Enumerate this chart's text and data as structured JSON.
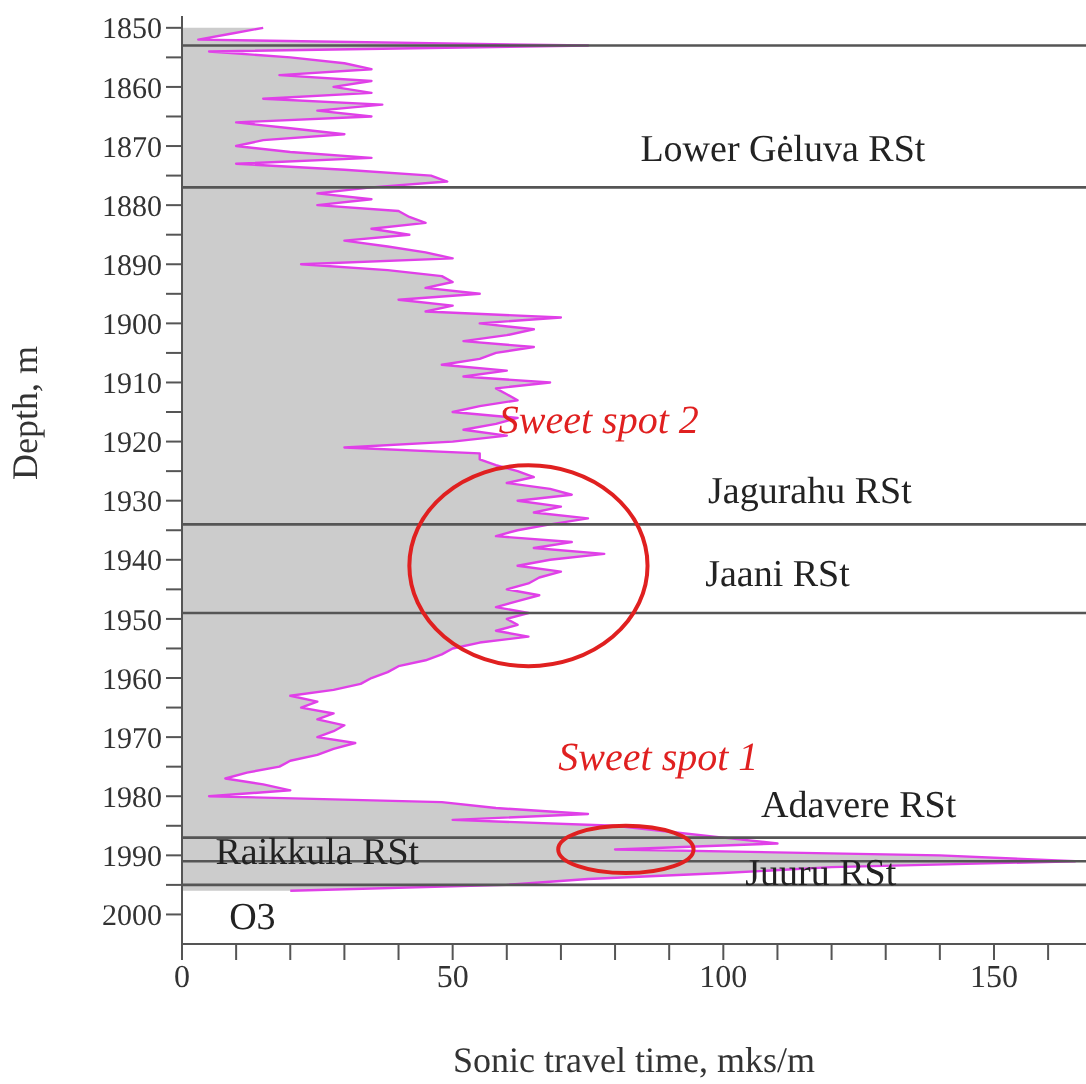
{
  "chart_data": {
    "type": "area",
    "orientation": "horizontal",
    "xlabel": "Sonic travel time, mks/m",
    "ylabel": "Depth, m",
    "xlim": [
      0,
      167
    ],
    "xticks": [
      0,
      {
        "value": 10,
        "label": null
      },
      {
        "value": 20,
        "label": null
      },
      {
        "value": 30,
        "label": null
      },
      {
        "value": 40,
        "label": null
      },
      50,
      {
        "value": 60,
        "label": null
      },
      {
        "value": 70,
        "label": null
      },
      {
        "value": 80,
        "label": null
      },
      {
        "value": 90,
        "label": null
      },
      100,
      {
        "value": 110,
        "label": null
      },
      {
        "value": 120,
        "label": null
      },
      {
        "value": 130,
        "label": null
      },
      {
        "value": 140,
        "label": null
      },
      150,
      {
        "value": 160,
        "label": null
      }
    ],
    "ylim": [
      2005,
      1848
    ],
    "yticks": [
      1850,
      {
        "value": 1855,
        "label": null
      },
      1860,
      {
        "value": 1865,
        "label": null
      },
      1870,
      {
        "value": 1875,
        "label": null
      },
      1880,
      {
        "value": 1885,
        "label": null
      },
      1890,
      {
        "value": 1895,
        "label": null
      },
      1900,
      {
        "value": 1905,
        "label": null
      },
      1910,
      {
        "value": 1915,
        "label": null
      },
      1920,
      {
        "value": 1925,
        "label": null
      },
      1930,
      {
        "value": 1935,
        "label": null
      },
      1940,
      {
        "value": 1945,
        "label": null
      },
      1950,
      {
        "value": 1955,
        "label": null
      },
      1960,
      {
        "value": 1965,
        "label": null
      },
      1970,
      {
        "value": 1975,
        "label": null
      },
      1980,
      {
        "value": 1985,
        "label": null
      },
      1990,
      {
        "value": 1995,
        "label": null
      },
      2000
    ],
    "x": [
      1850,
      1851,
      1852,
      1853,
      1854,
      1855,
      1856,
      1857,
      1858,
      1859,
      1860,
      1861,
      1862,
      1863,
      1864,
      1865,
      1866,
      1867,
      1868,
      1869,
      1870,
      1871,
      1872,
      1873,
      1874,
      1875,
      1876,
      1877,
      1878,
      1879,
      1880,
      1881,
      1882,
      1883,
      1884,
      1885,
      1886,
      1887,
      1888,
      1889,
      1890,
      1891,
      1892,
      1893,
      1894,
      1895,
      1896,
      1897,
      1898,
      1899,
      1900,
      1901,
      1902,
      1903,
      1904,
      1905,
      1906,
      1907,
      1908,
      1909,
      1910,
      1911,
      1912,
      1913,
      1914,
      1915,
      1916,
      1917,
      1918,
      1919,
      1920,
      1921,
      1922,
      1923,
      1924,
      1925,
      1926,
      1927,
      1928,
      1929,
      1930,
      1931,
      1932,
      1933,
      1934,
      1935,
      1936,
      1937,
      1938,
      1939,
      1940,
      1941,
      1942,
      1943,
      1944,
      1945,
      1946,
      1947,
      1948,
      1949,
      1950,
      1951,
      1952,
      1953,
      1954,
      1955,
      1956,
      1957,
      1958,
      1959,
      1960,
      1961,
      1962,
      1963,
      1964,
      1965,
      1966,
      1967,
      1968,
      1969,
      1970,
      1971,
      1972,
      1973,
      1974,
      1975,
      1976,
      1977,
      1978,
      1979,
      1980,
      1981,
      1982,
      1983,
      1984,
      1985,
      1986,
      1987,
      1988,
      1989,
      1990,
      1991,
      1992,
      1993,
      1994,
      1995,
      1996
    ],
    "series": [
      {
        "color": "#e040e8",
        "values": [
          15,
          9,
          3,
          75,
          5,
          20,
          30,
          35,
          18,
          35,
          28,
          35,
          15,
          37,
          25,
          35,
          10,
          20,
          30,
          15,
          10,
          20,
          35,
          10,
          30,
          46,
          49,
          35,
          25,
          35,
          25,
          40,
          42,
          45,
          35,
          42,
          30,
          38,
          45,
          50,
          22,
          38,
          48,
          50,
          45,
          55,
          40,
          50,
          45,
          70,
          55,
          65,
          60,
          52,
          65,
          58,
          55,
          48,
          60,
          52,
          68,
          58,
          60,
          62,
          55,
          50,
          62,
          58,
          52,
          60,
          50,
          30,
          55,
          55,
          58,
          62,
          65,
          60,
          68,
          72,
          62,
          70,
          65,
          75,
          68,
          62,
          58,
          72,
          65,
          78,
          68,
          62,
          70,
          66,
          64,
          60,
          66,
          62,
          58,
          64,
          60,
          62,
          58,
          64,
          55,
          50,
          48,
          45,
          40,
          38,
          35,
          33,
          28,
          20,
          25,
          22,
          28,
          25,
          30,
          28,
          25,
          32,
          28,
          25,
          20,
          18,
          12,
          8,
          15,
          20,
          5,
          48,
          58,
          75,
          50,
          80,
          90,
          100,
          110,
          80,
          140,
          165,
          120,
          100,
          75,
          60,
          20
        ]
      }
    ],
    "ref_lines": [
      {
        "axis": "y",
        "value": 1853
      },
      {
        "axis": "y",
        "value": 1877
      },
      {
        "axis": "y",
        "value": 1934
      },
      {
        "axis": "y",
        "value": 1949
      },
      {
        "axis": "y",
        "value": 1987
      },
      {
        "axis": "y",
        "value": 1991
      },
      {
        "axis": "y",
        "value": 1995
      }
    ],
    "annotations": [
      "Sweet spot 2",
      "Sweet spot 1",
      "Lower Gėluva RSt",
      "Jagurahu RSt",
      "Jaani RSt",
      "Adavere RSt",
      "Juuru RSt",
      "Raikkula RSt",
      "O3"
    ]
  }
}
